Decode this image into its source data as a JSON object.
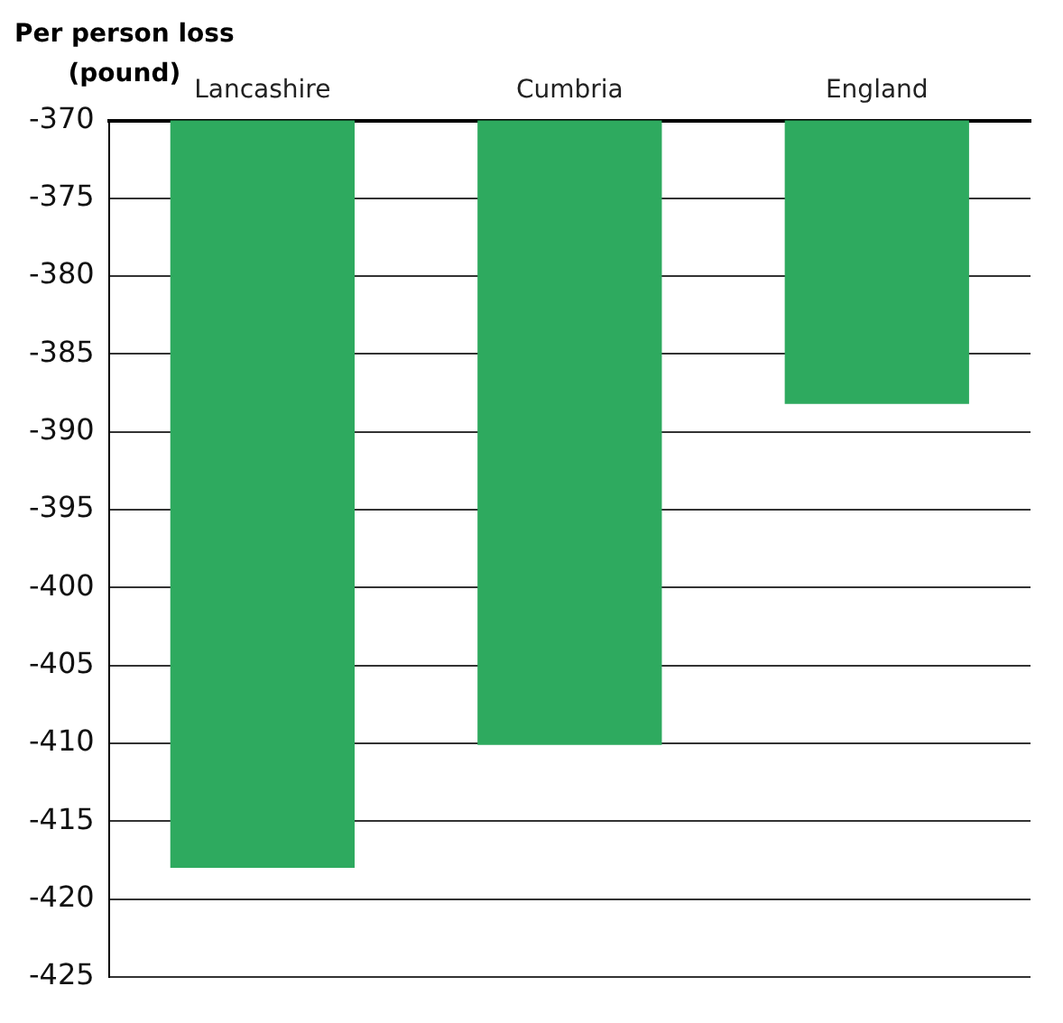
{
  "chart_data": {
    "type": "bar",
    "ylabel": "Per person loss\n(pound)",
    "categories": [
      "Lancashire",
      "Cumbria",
      "England"
    ],
    "values": [
      -418,
      -410.1,
      -388.2
    ],
    "color": "#2eaa5f",
    "ylim": [
      -425,
      -370
    ],
    "yticks": [
      -425,
      -420,
      -415,
      -410,
      -405,
      -400,
      -395,
      -390,
      -385,
      -380,
      -375,
      -370
    ],
    "grid": "y"
  }
}
